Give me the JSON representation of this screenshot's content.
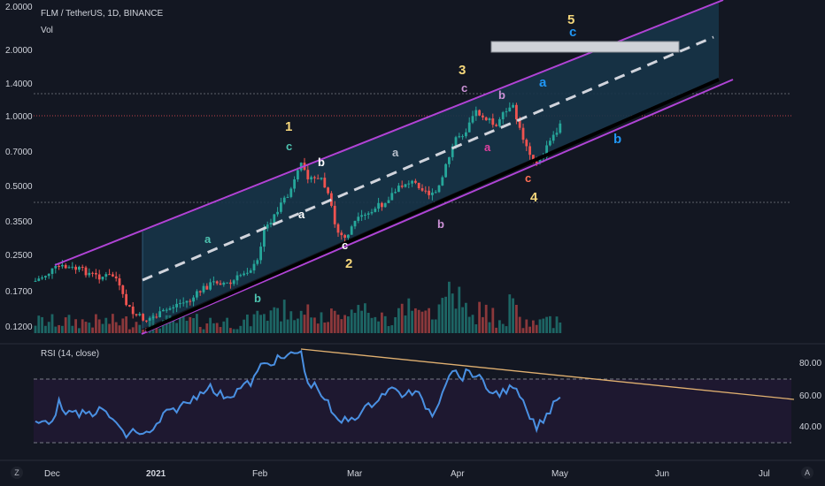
{
  "header": {
    "symbol": "FLM / TetherUS, 1D, BINANCE",
    "volume_label": "Vol"
  },
  "rsi": {
    "label": "RSI (14, close)",
    "levels": [
      "80.00",
      "60.00",
      "40.00"
    ]
  },
  "price_axis": {
    "labels": [
      "2.0000",
      "1.4000",
      "1.0000",
      "0.7000",
      "0.5000",
      "0.3500",
      "0.2500",
      "0.1700",
      "0.1200"
    ]
  },
  "time_axis": {
    "labels": [
      "Dec",
      "2021",
      "Feb",
      "Mar",
      "Apr",
      "May",
      "Jun",
      "Jul"
    ]
  },
  "wave_labels": [
    {
      "text": "1",
      "color": "#f5d77b"
    },
    {
      "text": "2",
      "color": "#f5d77b"
    },
    {
      "text": "3",
      "color": "#f5d77b"
    },
    {
      "text": "4",
      "color": "#f5d77b"
    },
    {
      "text": "5",
      "color": "#f5d77b"
    },
    {
      "text": "c",
      "color": "#4dc3b0"
    },
    {
      "text": "b",
      "color": "#ffffff"
    },
    {
      "text": "a",
      "color": "#ffffff"
    },
    {
      "text": "c",
      "color": "#ffffff"
    },
    {
      "text": "a",
      "color": "#4dc3b0"
    },
    {
      "text": "b",
      "color": "#4dc3b0"
    },
    {
      "text": "a",
      "color": "#b8c0cc"
    },
    {
      "text": "b",
      "color": "#ce93d8"
    },
    {
      "text": "c",
      "color": "#ce93d8"
    },
    {
      "text": "b",
      "color": "#ce93d8"
    },
    {
      "text": "a",
      "color": "#e040a0"
    },
    {
      "text": "c",
      "color": "#ff6e55"
    },
    {
      "text": "a",
      "color": "#2196f3"
    },
    {
      "text": "b",
      "color": "#2196f3"
    },
    {
      "text": "c",
      "color": "#2196f3"
    }
  ],
  "colors": {
    "background": "#131722",
    "channel_line": "#b044d6",
    "channel_fill": "#173448",
    "up_candle": "#26a69a",
    "down_candle": "#ef5350",
    "rsi_line": "#4a90e2",
    "rsi_band": "#1e1830",
    "trendline": "#e0b070"
  },
  "corner_buttons": {
    "left": "Z",
    "right": "A"
  }
}
